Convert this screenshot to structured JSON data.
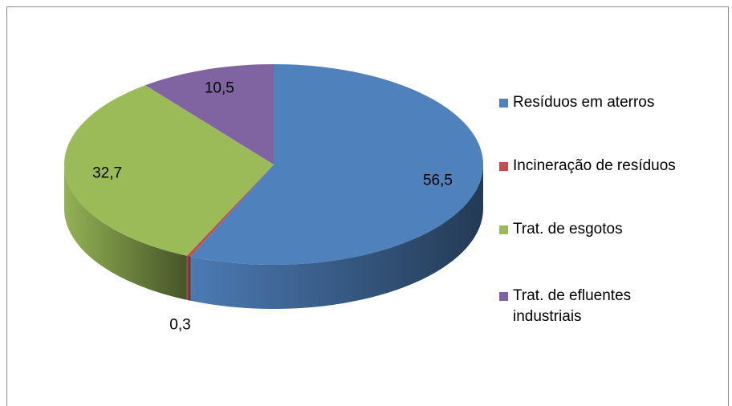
{
  "chart_data": {
    "type": "pie",
    "categories": [
      "Resíduos em aterros",
      "Incineração de resíduos",
      "Trat. de esgotos",
      "Trat. de efluentes industriais"
    ],
    "values": [
      56.5,
      0.3,
      32.7,
      10.5
    ],
    "value_labels": [
      "56,5",
      "0,3",
      "32,7",
      "10,5"
    ],
    "colors": [
      "#4f81bd",
      "#c0504d",
      "#9bbb59",
      "#8064a2"
    ],
    "legend": "right"
  }
}
